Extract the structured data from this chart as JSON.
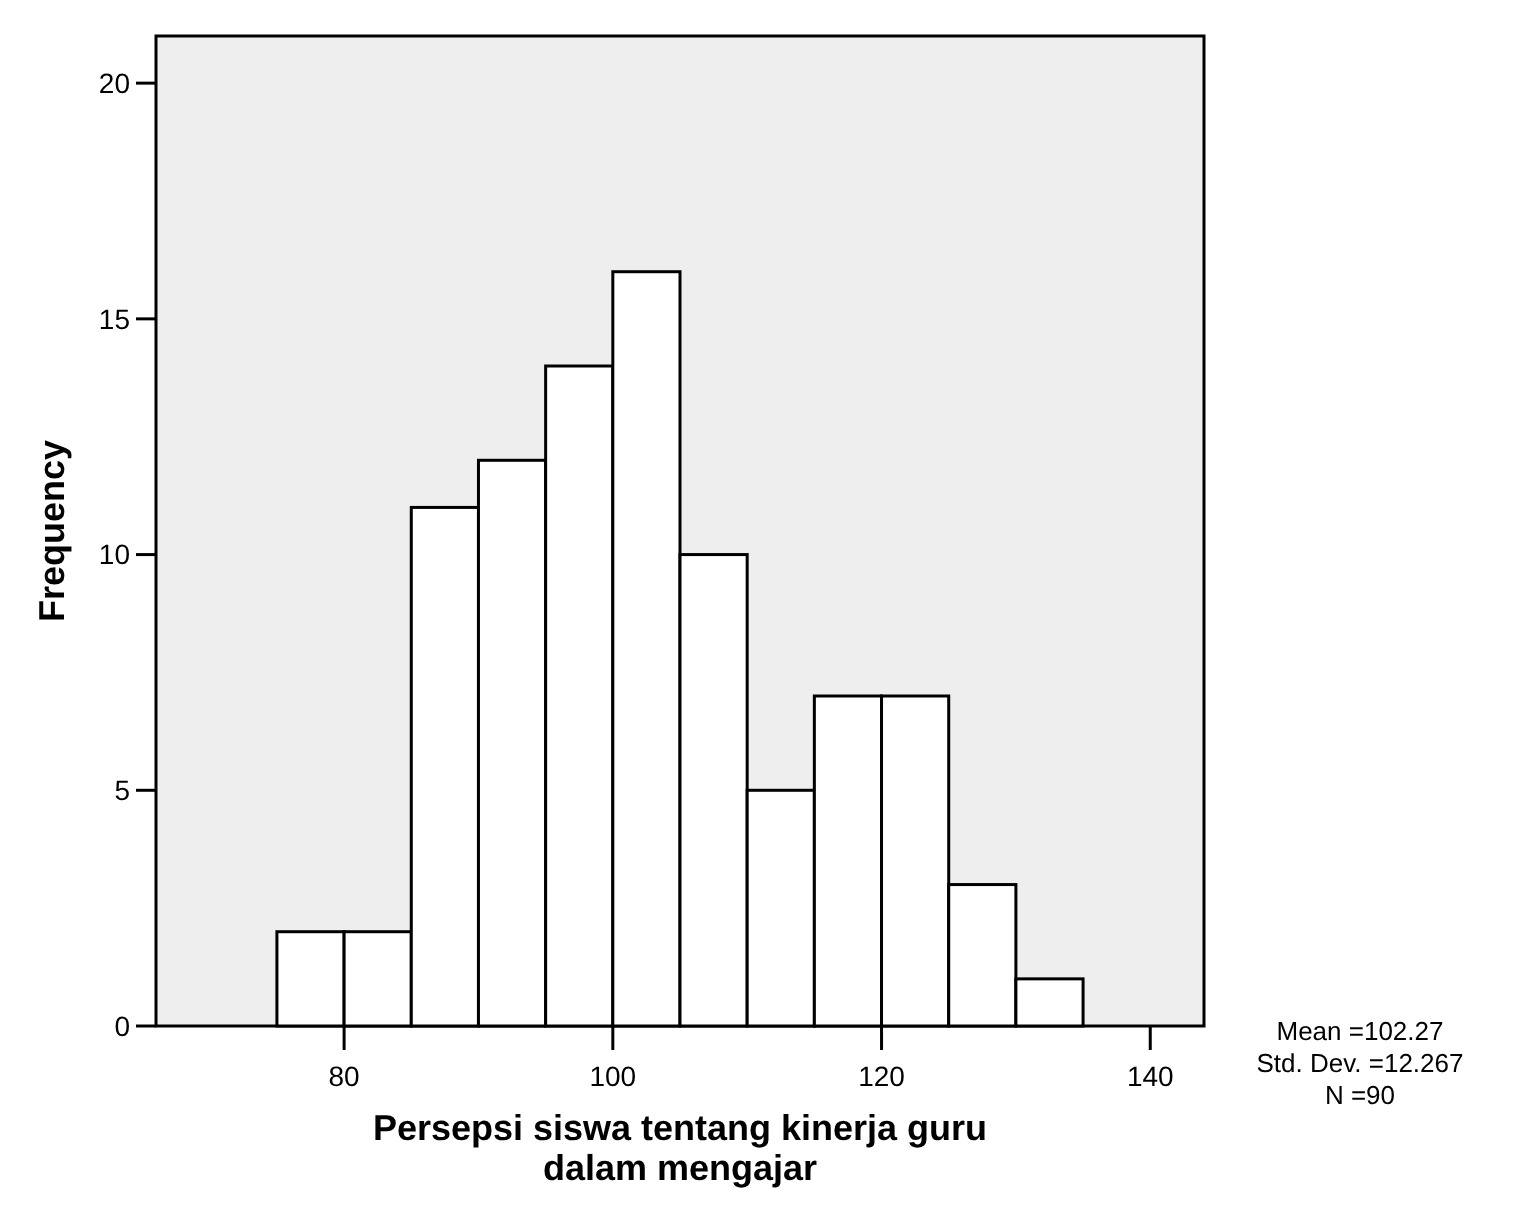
{
  "chart_data": {
    "type": "histogram",
    "xlabel": "Persepsi siswa tentang kinerja guru dalam mengajar",
    "ylabel": "Frequency",
    "bins": [
      75,
      80,
      85,
      90,
      95,
      100,
      105,
      110,
      115,
      120,
      125,
      130,
      135
    ],
    "values": [
      2,
      2,
      11,
      12,
      14,
      16,
      10,
      5,
      7,
      7,
      3,
      1
    ],
    "color": "#ffffff",
    "xlim": [
      66,
      144
    ],
    "xticks": [
      80,
      100,
      120,
      140
    ],
    "ylim": [
      0,
      21
    ],
    "yticks": [
      0,
      5,
      10,
      15,
      20
    ],
    "grid": false,
    "annotations": [
      "Mean =102.27",
      "Std. Dev. =12.267",
      "N =90"
    ]
  }
}
